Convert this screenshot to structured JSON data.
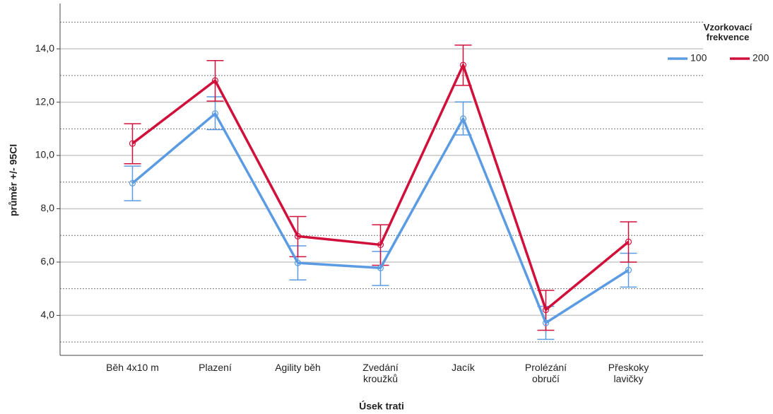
{
  "chart_data": {
    "type": "line",
    "y_label": "průměr +/- 95CI",
    "x_label": "Úsek trati",
    "legend_title": "Vzorkovací frekvence",
    "legend_position": "top-right",
    "categories": [
      "Běh 4x10 m",
      "Plazení",
      "Agility běh",
      "Zvedání kroužků",
      "Jacík",
      "Prolézání obručí",
      "Přeskoky lavičky"
    ],
    "series": [
      {
        "name": "100",
        "color": "#5b9be2",
        "values": [
          8.96,
          11.57,
          5.97,
          5.78,
          11.38,
          3.72,
          5.7
        ],
        "lower": [
          8.3,
          10.97,
          5.33,
          5.12,
          10.77,
          3.1,
          5.06
        ],
        "upper": [
          9.6,
          12.2,
          6.61,
          6.4,
          12.01,
          4.34,
          6.33
        ]
      },
      {
        "name": "200",
        "color": "#d0103a",
        "values": [
          10.45,
          12.81,
          6.97,
          6.65,
          13.39,
          4.21,
          6.76
        ],
        "lower": [
          9.69,
          12.04,
          6.2,
          5.88,
          12.63,
          3.44,
          6.0
        ],
        "upper": [
          11.19,
          13.56,
          7.71,
          7.4,
          14.14,
          4.94,
          7.51
        ]
      }
    ],
    "ylim": [
      2.5,
      15.7
    ],
    "yticks": [
      {
        "value": 4,
        "label": "4,0"
      },
      {
        "value": 6,
        "label": "6,0"
      },
      {
        "value": 8,
        "label": "8,0"
      },
      {
        "value": 10,
        "label": "10,0"
      },
      {
        "value": 12,
        "label": "12,0"
      },
      {
        "value": 14,
        "label": "14,0"
      }
    ],
    "minor_gridlines": [
      3,
      5,
      7,
      9,
      11,
      13,
      15
    ],
    "grid": true
  }
}
